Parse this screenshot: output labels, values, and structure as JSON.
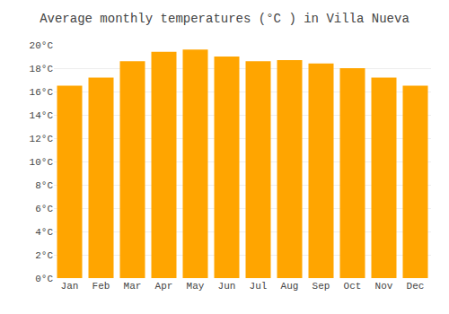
{
  "chart_data": {
    "type": "bar",
    "title": "Average monthly temperatures (°C ) in Villa Nueva",
    "categories": [
      "Jan",
      "Feb",
      "Mar",
      "Apr",
      "May",
      "Jun",
      "Jul",
      "Aug",
      "Sep",
      "Oct",
      "Nov",
      "Dec"
    ],
    "values": [
      16.5,
      17.2,
      18.6,
      19.4,
      19.6,
      19.0,
      18.6,
      18.7,
      18.4,
      18.0,
      17.2,
      16.5
    ],
    "color": "#FFA500",
    "ylim": [
      0,
      20
    ],
    "yticks": [
      {
        "value": 0,
        "label": "0°C"
      },
      {
        "value": 2,
        "label": "2°C"
      },
      {
        "value": 4,
        "label": "4°C"
      },
      {
        "value": 6,
        "label": "6°C"
      },
      {
        "value": 8,
        "label": "8°C"
      },
      {
        "value": 10,
        "label": "10°C"
      },
      {
        "value": 12,
        "label": "12°C"
      },
      {
        "value": 14,
        "label": "14°C"
      },
      {
        "value": 16,
        "label": "16°C"
      },
      {
        "value": 18,
        "label": "18°C"
      },
      {
        "value": 20,
        "label": "20°C"
      }
    ],
    "grid": true
  }
}
